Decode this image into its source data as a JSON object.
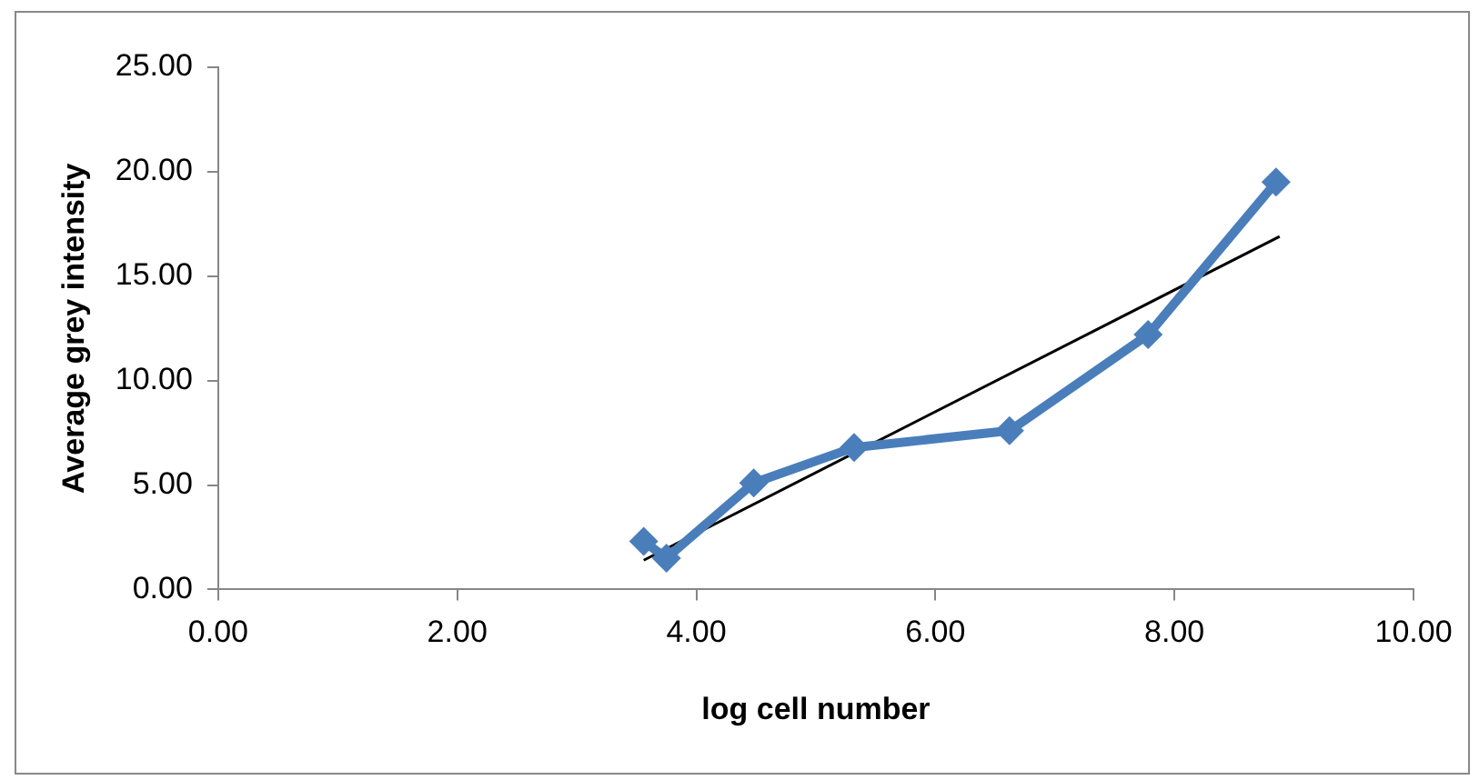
{
  "chart_data": {
    "type": "line",
    "xlabel": "log cell number",
    "ylabel": "Average grey intensity",
    "xlim": [
      0,
      10
    ],
    "ylim": [
      0,
      25
    ],
    "xticks": [
      {
        "value": 0,
        "label": "0.00"
      },
      {
        "value": 2,
        "label": "2.00"
      },
      {
        "value": 4,
        "label": "4.00"
      },
      {
        "value": 6,
        "label": "6.00"
      },
      {
        "value": 8,
        "label": "8.00"
      },
      {
        "value": 10,
        "label": "10.00"
      }
    ],
    "yticks": [
      {
        "value": 0,
        "label": "0.00"
      },
      {
        "value": 5,
        "label": "5.00"
      },
      {
        "value": 10,
        "label": "10.00"
      },
      {
        "value": 15,
        "label": "15.00"
      },
      {
        "value": 20,
        "label": "20.00"
      },
      {
        "value": 25,
        "label": "25.00"
      }
    ],
    "grid": false,
    "legend": false,
    "series": [
      {
        "color": "#4a7ebb",
        "marker": "diamond",
        "x": [
          3.56,
          3.75,
          4.48,
          5.32,
          6.62,
          7.78,
          8.85
        ],
        "values": [
          2.3,
          1.5,
          5.1,
          6.8,
          7.6,
          12.2,
          19.5
        ]
      },
      {
        "type": "line",
        "color": "#000000",
        "marker": "none",
        "x": [
          3.56,
          8.88
        ],
        "values": [
          1.4,
          16.9
        ]
      }
    ]
  }
}
